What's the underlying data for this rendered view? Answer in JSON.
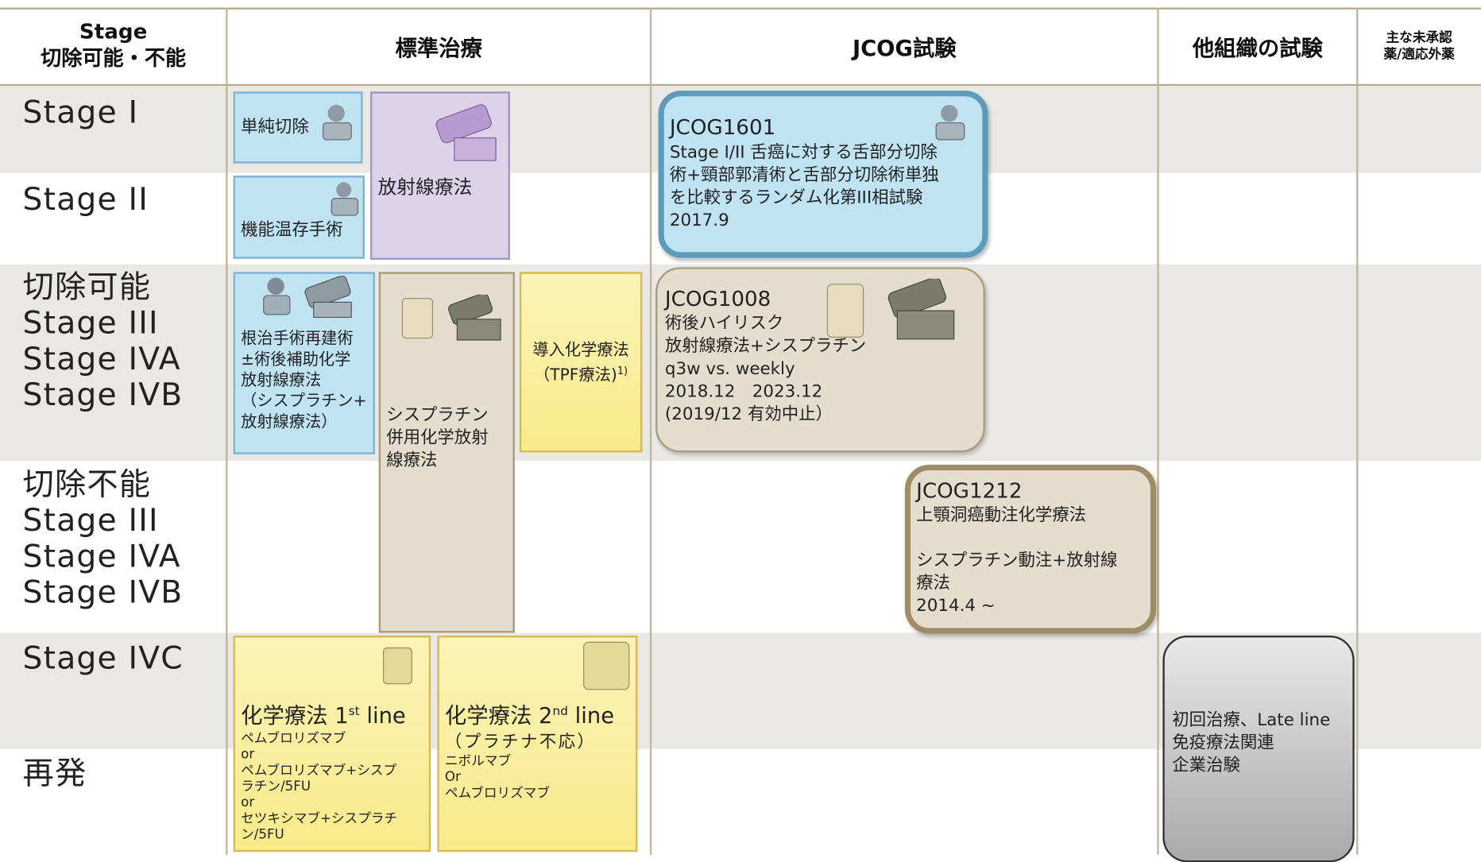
{
  "header": {
    "columns": [
      [
        "Stage",
        "切除可能・不能"
      ],
      [
        "標準治療"
      ],
      [
        "JCOG試験"
      ],
      [
        "他組織の試験"
      ],
      [
        "主な未承認",
        "薬/適応外薬"
      ]
    ]
  },
  "rows": [
    [
      "Stage I"
    ],
    [
      "Stage II"
    ],
    [
      "切除可能",
      "Stage III",
      "Stage IVA",
      "Stage IVB"
    ],
    [
      "切除不能",
      "Stage III",
      "Stage IVA",
      "Stage IVB"
    ],
    [
      "Stage IVC"
    ],
    [
      "再発"
    ]
  ],
  "standard_treatment": [
    {
      "lines": [
        "単純切除"
      ]
    },
    {
      "lines": [
        "機能温存手術"
      ]
    },
    {
      "lines": [
        "放射線療法"
      ]
    },
    {
      "lines": [
        "根治手術再建術",
        "±術後補助化学",
        "放射線療法",
        "（シスプラチン+",
        "放射線療法）"
      ]
    },
    {
      "lines": [
        "シスプラチン",
        "併用化学放射",
        "線療法"
      ]
    },
    {
      "lines": [
        "導入化学療法"
      ],
      "last": "（TPF療法)",
      "note": "1)"
    },
    {
      "title": {
        "main": "化学療法 1",
        "sup": "st",
        "rest": " line"
      },
      "lines": [
        "ペムブロリズマブ",
        "or",
        "ペムブロリズマブ+シスプ",
        "ラチン/5FU",
        "or",
        "セツキシマブ+シスプラチ",
        "ン/5FU"
      ]
    },
    {
      "title": {
        "main": "化学療法 2",
        "sup": "nd",
        "rest": " line"
      },
      "lines": [
        "（プラチナ不応）",
        "ニボルマブ",
        "Or",
        "ペムブロリズマブ"
      ]
    }
  ],
  "jcog_trials": [
    {
      "id": "JCOG1601",
      "lines": [
        "Stage I/II 舌癌に対する舌部分切除",
        "術+頸部郭清術と舌部分切除術単独",
        "を比較するランダム化第III相試験",
        "2017.9"
      ]
    },
    {
      "id": "JCOG1008",
      "lines": [
        "術後ハイリスク",
        "放射線療法+シスプラチン",
        "q3w vs. weekly",
        "2018.12　2023.12",
        "(2019/12 有効中止）"
      ]
    },
    {
      "id": "JCOG1212",
      "lines": [
        "上顎洞癌動注化学療法"
      ],
      "detail": [
        "シスプラチン動注+放射線",
        "療法",
        "2014.4 ~"
      ]
    }
  ],
  "other_trials": [
    {
      "lines": [
        "初回治療、Late line",
        "免疫療法関連",
        "企業治験"
      ]
    }
  ]
}
